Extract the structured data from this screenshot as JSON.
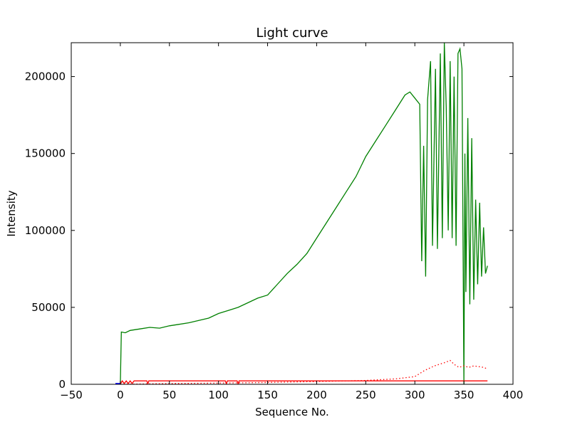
{
  "chart_data": {
    "type": "line",
    "title": "Light curve",
    "xlabel": "Sequence No.",
    "ylabel": "Intensity",
    "xlim": [
      -50,
      400
    ],
    "ylim": [
      0,
      222000
    ],
    "xticks": [
      -50,
      0,
      50,
      100,
      150,
      200,
      250,
      300,
      350,
      400
    ],
    "yticks": [
      0,
      50000,
      100000,
      150000,
      200000
    ],
    "grid": false,
    "legend": "none",
    "series": [
      {
        "color": "#008000",
        "style": "solid",
        "x": [
          0,
          1,
          5,
          10,
          20,
          30,
          40,
          50,
          60,
          70,
          80,
          90,
          100,
          110,
          120,
          130,
          140,
          150,
          160,
          170,
          180,
          190,
          200,
          210,
          220,
          230,
          240,
          250,
          260,
          270,
          280,
          290,
          295,
          300,
          305,
          307,
          309,
          311,
          313,
          316,
          318,
          321,
          323,
          326,
          328,
          330,
          332,
          334,
          336,
          338,
          340,
          342,
          344,
          346,
          348,
          350,
          351,
          352,
          354,
          356,
          358,
          360,
          362,
          364,
          366,
          368,
          370,
          372,
          374
        ],
        "y": [
          0,
          34000,
          33500,
          35000,
          36000,
          37000,
          36500,
          38000,
          39000,
          40000,
          41500,
          43000,
          46000,
          48000,
          50000,
          53000,
          56000,
          58000,
          65000,
          72000,
          78000,
          85000,
          95000,
          105000,
          115000,
          125000,
          135000,
          148000,
          158000,
          168000,
          178000,
          188000,
          190000,
          186000,
          182000,
          80000,
          155000,
          70000,
          185000,
          210000,
          90000,
          205000,
          88000,
          215000,
          95000,
          222000,
          180000,
          100000,
          210000,
          95000,
          200000,
          90000,
          215000,
          218000,
          205000,
          0,
          150000,
          60000,
          173000,
          52000,
          160000,
          55000,
          120000,
          65000,
          118000,
          70000,
          102000,
          72000,
          77000
        ]
      },
      {
        "color": "#ff0000",
        "style": "dotted",
        "x": [
          0,
          50,
          100,
          150,
          200,
          250,
          280,
          300,
          310,
          320,
          330,
          336,
          340,
          345,
          350,
          355,
          360,
          370,
          374
        ],
        "y": [
          0,
          500,
          800,
          1200,
          1800,
          2500,
          3500,
          5000,
          9000,
          12000,
          14000,
          15500,
          13000,
          11000,
          12000,
          11000,
          12000,
          11000,
          10000
        ]
      },
      {
        "color": "#ff0000",
        "style": "solid",
        "x": [
          0,
          2,
          4,
          6,
          8,
          10,
          12,
          14,
          16,
          27,
          28,
          29,
          107,
          108,
          109,
          119,
          120,
          121,
          374
        ],
        "y": [
          0,
          2200,
          500,
          2200,
          500,
          2200,
          500,
          2200,
          2200,
          2200,
          200,
          2200,
          2200,
          200,
          2200,
          2200,
          200,
          2200,
          2200
        ]
      },
      {
        "color": "#0000ff",
        "style": "solid",
        "x": [
          -5,
          0
        ],
        "y": [
          300,
          300
        ]
      }
    ]
  }
}
